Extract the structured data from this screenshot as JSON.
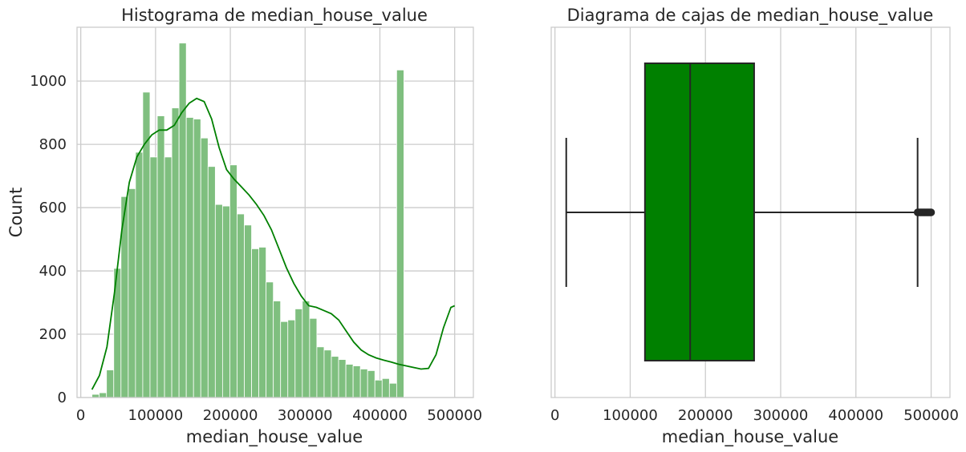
{
  "chart_data": [
    {
      "type": "bar",
      "chart_kind": "histogram-with-kde",
      "title": "Histograma de median_house_value",
      "xlabel": "median_house_value",
      "ylabel": "Count",
      "xlim": [
        -5000,
        525000
      ],
      "ylim": [
        0,
        1170
      ],
      "xticks": [
        0,
        100000,
        200000,
        300000,
        400000,
        500000
      ],
      "xtick_labels": [
        "0",
        "100000",
        "200000",
        "300000",
        "400000",
        "500000"
      ],
      "yticks": [
        0,
        200,
        400,
        600,
        800,
        1000
      ],
      "ytick_labels": [
        "0",
        "200",
        "400",
        "600",
        "800",
        "1000"
      ],
      "grid": true,
      "bar_color": "#7fbf7f",
      "kde_color": "#008000",
      "bins": {
        "start": 14999,
        "width": 9700,
        "counts": [
          10,
          15,
          87,
          408,
          635,
          660,
          775,
          965,
          760,
          890,
          760,
          915,
          1120,
          885,
          880,
          820,
          730,
          610,
          605,
          735,
          580,
          545,
          470,
          475,
          365,
          305,
          240,
          245,
          280,
          305,
          250,
          160,
          150,
          130,
          120,
          105,
          100,
          90,
          85,
          55,
          60,
          45,
          1035
        ]
      },
      "kde": {
        "x": [
          15000,
          25000,
          35000,
          45000,
          55000,
          65000,
          75000,
          85000,
          95000,
          105000,
          115000,
          125000,
          135000,
          145000,
          155000,
          165000,
          175000,
          185000,
          195000,
          205000,
          215000,
          225000,
          235000,
          245000,
          255000,
          265000,
          275000,
          285000,
          295000,
          305000,
          315000,
          325000,
          335000,
          345000,
          355000,
          365000,
          375000,
          385000,
          395000,
          405000,
          415000,
          425000,
          435000,
          445000,
          455000,
          465000,
          475000,
          485000,
          495000,
          500001
        ],
        "y": [
          25,
          70,
          160,
          330,
          530,
          680,
          760,
          800,
          830,
          845,
          845,
          860,
          900,
          930,
          945,
          935,
          880,
          790,
          720,
          690,
          665,
          640,
          610,
          575,
          530,
          470,
          410,
          360,
          320,
          290,
          285,
          275,
          265,
          245,
          210,
          175,
          150,
          135,
          125,
          118,
          112,
          105,
          100,
          95,
          90,
          92,
          135,
          220,
          285,
          290
        ]
      }
    },
    {
      "type": "box",
      "title": "Diagrama de cajas de median_house_value",
      "xlabel": "median_house_value",
      "xlim": [
        -5000,
        525000
      ],
      "xticks": [
        0,
        100000,
        200000,
        300000,
        400000,
        500000
      ],
      "xtick_labels": [
        "0",
        "100000",
        "200000",
        "300000",
        "400000",
        "500000"
      ],
      "grid": true,
      "box_color": "#008000",
      "line_color": "#262626",
      "whisker_low": 14999,
      "q1": 119600,
      "median": 179700,
      "q3": 264725,
      "whisker_high": 482000,
      "outliers_range": [
        482000,
        500001
      ]
    }
  ]
}
